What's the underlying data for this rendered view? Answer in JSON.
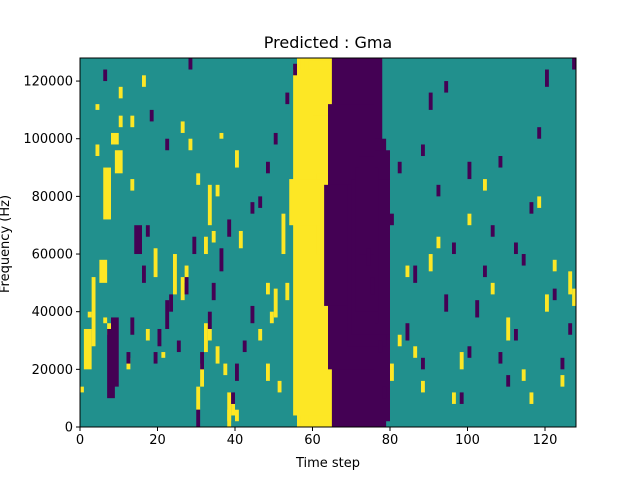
{
  "chart_data": {
    "type": "heatmap",
    "title": "Predicted : Gma",
    "xlabel": "Time step",
    "ylabel": "Frequency (Hz)",
    "xlim": [
      0,
      128
    ],
    "ylim": [
      0,
      128000
    ],
    "x_ticks": [
      0,
      20,
      40,
      60,
      80,
      100,
      120
    ],
    "y_ticks": [
      0,
      20000,
      40000,
      60000,
      80000,
      100000,
      120000
    ],
    "x_tick_labels": [
      "0",
      "20",
      "40",
      "60",
      "80",
      "100",
      "120"
    ],
    "y_tick_labels": [
      "0",
      "20000",
      "40000",
      "60000",
      "80000",
      "100000",
      "120000"
    ],
    "colormap": "viridis",
    "background_value": 0,
    "colors": {
      "background": "#21908d",
      "high": "#fde725",
      "low": "#440154"
    },
    "grid": false,
    "cells": {
      "high": [
        [
          56,
          0,
          8,
          128
        ],
        [
          57,
          0,
          8,
          128
        ],
        [
          58,
          0,
          8,
          128
        ],
        [
          59,
          1,
          10,
          127
        ],
        [
          55,
          4,
          14,
          124
        ],
        [
          60,
          4,
          10,
          108
        ],
        [
          61,
          60,
          8,
          88
        ],
        [
          54,
          70,
          8,
          86
        ],
        [
          62,
          78,
          8,
          84
        ],
        [
          0,
          12,
          1,
          14
        ],
        [
          1,
          20,
          2,
          34
        ],
        [
          2,
          38,
          1,
          40
        ],
        [
          3,
          28,
          1,
          52
        ],
        [
          5,
          50,
          2,
          58
        ],
        [
          6,
          72,
          2,
          90
        ],
        [
          8,
          98,
          2,
          102
        ],
        [
          9,
          88,
          2,
          96
        ],
        [
          4,
          110,
          1,
          112
        ],
        [
          10,
          114,
          1,
          118
        ],
        [
          12,
          20,
          1,
          24
        ],
        [
          17,
          30,
          1,
          34
        ],
        [
          19,
          52,
          1,
          62
        ],
        [
          13,
          82,
          1,
          86
        ],
        [
          13,
          104,
          1,
          108
        ],
        [
          21,
          24,
          1,
          26
        ],
        [
          24,
          46,
          1,
          60
        ],
        [
          26,
          44,
          1,
          52
        ],
        [
          27,
          50,
          1,
          56
        ],
        [
          30,
          6,
          1,
          14
        ],
        [
          31,
          14,
          1,
          22
        ],
        [
          32,
          26,
          1,
          36
        ],
        [
          33,
          30,
          1,
          34
        ],
        [
          34,
          64,
          1,
          68
        ],
        [
          32,
          60,
          1,
          66
        ],
        [
          35,
          22,
          1,
          28
        ],
        [
          33,
          70,
          1,
          84
        ],
        [
          35,
          80,
          1,
          84
        ],
        [
          40,
          90,
          1,
          96
        ],
        [
          41,
          62,
          1,
          68
        ],
        [
          38,
          0,
          1,
          12
        ],
        [
          39,
          4,
          1,
          8
        ],
        [
          36,
          100,
          1,
          102
        ],
        [
          46,
          30,
          1,
          34
        ],
        [
          48,
          16,
          1,
          22
        ],
        [
          49,
          36,
          1,
          40
        ],
        [
          50,
          38,
          1,
          48
        ],
        [
          51,
          12,
          1,
          16
        ],
        [
          52,
          60,
          1,
          74
        ],
        [
          53,
          44,
          1,
          50
        ],
        [
          48,
          46,
          1,
          50
        ],
        [
          66,
          60,
          1,
          64
        ],
        [
          68,
          90,
          1,
          96
        ],
        [
          70,
          96,
          1,
          100
        ],
        [
          72,
          58,
          1,
          62
        ],
        [
          78,
          64,
          1,
          68
        ],
        [
          80,
          16,
          1,
          22
        ],
        [
          82,
          28,
          1,
          32
        ],
        [
          84,
          52,
          1,
          56
        ],
        [
          86,
          24,
          1,
          28
        ],
        [
          88,
          12,
          1,
          16
        ],
        [
          90,
          54,
          1,
          60
        ],
        [
          92,
          62,
          1,
          66
        ],
        [
          96,
          8,
          1,
          12
        ],
        [
          98,
          20,
          1,
          26
        ],
        [
          100,
          70,
          1,
          74
        ],
        [
          104,
          82,
          1,
          86
        ],
        [
          106,
          46,
          1,
          50
        ],
        [
          110,
          30,
          1,
          38
        ],
        [
          114,
          16,
          1,
          20
        ],
        [
          116,
          8,
          1,
          12
        ],
        [
          118,
          76,
          1,
          80
        ],
        [
          120,
          40,
          1,
          46
        ],
        [
          122,
          54,
          1,
          58
        ],
        [
          124,
          14,
          1,
          18
        ],
        [
          126,
          46,
          1,
          54
        ],
        [
          127,
          42,
          1,
          48
        ],
        [
          38,
          2,
          1,
          6
        ],
        [
          40,
          2,
          1,
          6
        ],
        [
          37,
          18,
          1,
          22
        ],
        [
          30,
          84,
          1,
          88
        ],
        [
          28,
          96,
          1,
          100
        ],
        [
          26,
          102,
          1,
          106
        ],
        [
          16,
          118,
          1,
          122
        ],
        [
          10,
          104,
          1,
          108
        ],
        [
          7,
          32,
          1,
          36
        ],
        [
          8,
          28,
          1,
          30
        ],
        [
          6,
          36,
          1,
          38
        ],
        [
          4,
          94,
          1,
          98
        ]
      ],
      "low": [
        [
          65,
          0,
          12,
          128
        ],
        [
          66,
          0,
          12,
          128
        ],
        [
          67,
          0,
          12,
          100
        ],
        [
          68,
          2,
          12,
          96
        ],
        [
          64,
          20,
          12,
          112
        ],
        [
          63,
          42,
          8,
          84
        ],
        [
          69,
          28,
          10,
          84
        ],
        [
          70,
          32,
          10,
          86
        ],
        [
          71,
          40,
          6,
          90
        ],
        [
          72,
          60,
          4,
          94
        ],
        [
          7,
          10,
          2,
          34
        ],
        [
          8,
          14,
          2,
          38
        ],
        [
          12,
          22,
          1,
          26
        ],
        [
          13,
          32,
          1,
          38
        ],
        [
          14,
          60,
          2,
          70
        ],
        [
          16,
          50,
          1,
          56
        ],
        [
          17,
          66,
          1,
          70
        ],
        [
          19,
          22,
          1,
          26
        ],
        [
          20,
          28,
          1,
          34
        ],
        [
          22,
          34,
          1,
          44
        ],
        [
          23,
          40,
          1,
          46
        ],
        [
          25,
          26,
          1,
          30
        ],
        [
          27,
          46,
          1,
          52
        ],
        [
          29,
          60,
          1,
          66
        ],
        [
          30,
          0,
          1,
          6
        ],
        [
          31,
          20,
          1,
          26
        ],
        [
          33,
          34,
          1,
          40
        ],
        [
          34,
          44,
          1,
          50
        ],
        [
          36,
          54,
          1,
          62
        ],
        [
          38,
          66,
          1,
          72
        ],
        [
          39,
          8,
          1,
          12
        ],
        [
          40,
          16,
          1,
          22
        ],
        [
          42,
          26,
          1,
          30
        ],
        [
          44,
          36,
          1,
          42
        ],
        [
          46,
          76,
          1,
          80
        ],
        [
          48,
          88,
          1,
          92
        ],
        [
          50,
          98,
          1,
          102
        ],
        [
          53,
          112,
          1,
          116
        ],
        [
          55,
          122,
          1,
          126
        ],
        [
          74,
          56,
          1,
          62
        ],
        [
          75,
          46,
          1,
          52
        ],
        [
          76,
          36,
          1,
          40
        ],
        [
          77,
          26,
          1,
          30
        ],
        [
          78,
          10,
          1,
          14
        ],
        [
          80,
          70,
          1,
          74
        ],
        [
          82,
          88,
          1,
          92
        ],
        [
          84,
          30,
          1,
          36
        ],
        [
          86,
          50,
          1,
          56
        ],
        [
          88,
          20,
          1,
          24
        ],
        [
          90,
          110,
          1,
          116
        ],
        [
          92,
          80,
          1,
          84
        ],
        [
          94,
          40,
          1,
          46
        ],
        [
          96,
          60,
          1,
          64
        ],
        [
          98,
          8,
          1,
          12
        ],
        [
          100,
          24,
          1,
          28
        ],
        [
          102,
          38,
          1,
          44
        ],
        [
          104,
          52,
          1,
          56
        ],
        [
          106,
          66,
          1,
          70
        ],
        [
          108,
          90,
          1,
          94
        ],
        [
          110,
          14,
          1,
          18
        ],
        [
          112,
          30,
          1,
          34
        ],
        [
          114,
          56,
          1,
          60
        ],
        [
          116,
          74,
          1,
          78
        ],
        [
          118,
          100,
          1,
          104
        ],
        [
          120,
          118,
          1,
          124
        ],
        [
          122,
          44,
          1,
          48
        ],
        [
          124,
          20,
          1,
          24
        ],
        [
          126,
          32,
          1,
          36
        ],
        [
          127,
          124,
          1,
          128
        ],
        [
          88,
          94,
          1,
          98
        ],
        [
          94,
          116,
          1,
          120
        ],
        [
          100,
          86,
          1,
          92
        ],
        [
          108,
          22,
          1,
          26
        ],
        [
          112,
          60,
          1,
          64
        ],
        [
          6,
          120,
          1,
          124
        ],
        [
          18,
          106,
          1,
          110
        ],
        [
          22,
          96,
          1,
          100
        ],
        [
          28,
          124,
          1,
          128
        ],
        [
          44,
          74,
          1,
          78
        ]
      ]
    }
  }
}
